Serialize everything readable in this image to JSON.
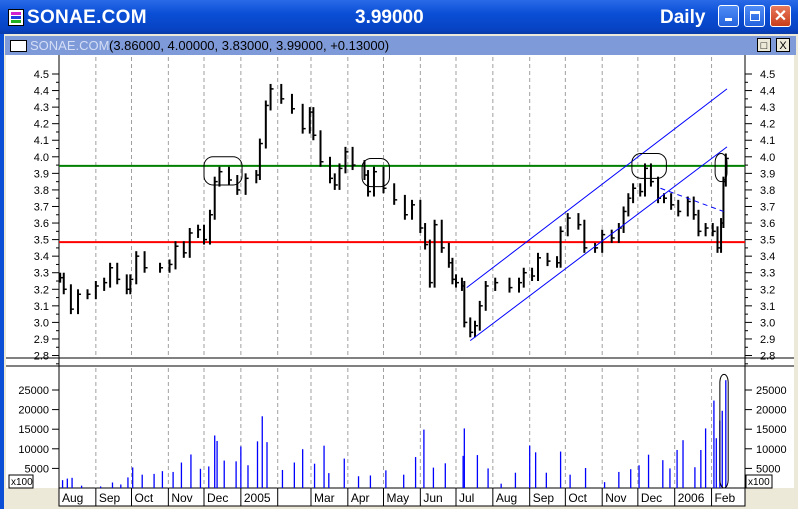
{
  "window": {
    "symbol": "SONAE.COM",
    "last_price": "3.99000",
    "periodicity": "Daily",
    "minimize_icon": "minimize-icon",
    "maximize_icon": "maximize-icon",
    "close_icon": "close-icon"
  },
  "chart_window": {
    "title": "SONAE.COM",
    "ohlc_text": "(3.86000, 4.00000, 3.83000, 3.99000, +0.13000)",
    "restore_label": "□",
    "close_label": "X"
  },
  "chart_data": [
    {
      "type": "bar",
      "pane": "price",
      "ylim": [
        2.8,
        4.55
      ],
      "yticks": [
        "4.5",
        "4.4",
        "4.3",
        "4.2",
        "4.1",
        "4.0",
        "3.9",
        "3.8",
        "3.7",
        "3.6",
        "3.5",
        "3.4",
        "3.3",
        "3.2",
        "3.1",
        "3.0",
        "2.9",
        "2.8"
      ],
      "xlim": [
        "2004-08-01",
        "2006-02-14"
      ],
      "grid": "vertical dashed at month starts",
      "colors": {
        "bars": "#000000",
        "support": "#ff0000",
        "resistance": "#008000",
        "channel": "#0000ff"
      },
      "series": [
        {
          "values": [
            [
              "2004-08-02",
              3.27
            ],
            [
              "2004-08-05",
              3.2
            ],
            [
              "2004-08-11",
              3.08
            ],
            [
              "2004-08-17",
              3.17
            ],
            [
              "2004-08-25",
              3.17
            ],
            [
              "2004-09-01",
              3.22
            ],
            [
              "2004-09-08",
              3.24
            ],
            [
              "2004-09-13",
              3.33
            ],
            [
              "2004-09-19",
              3.26
            ],
            [
              "2004-09-27",
              3.2
            ],
            [
              "2004-09-30",
              3.26
            ],
            [
              "2004-10-05",
              3.4
            ],
            [
              "2004-10-12",
              3.33
            ],
            [
              "2004-10-25",
              3.33
            ],
            [
              "2004-11-02",
              3.35
            ],
            [
              "2004-11-07",
              3.46
            ],
            [
              "2004-11-14",
              3.42
            ],
            [
              "2004-11-19",
              3.54
            ],
            [
              "2004-11-26",
              3.56
            ],
            [
              "2004-12-01",
              3.5
            ],
            [
              "2004-12-06",
              3.65
            ],
            [
              "2004-12-10",
              3.85
            ],
            [
              "2004-12-14",
              3.91
            ],
            [
              "2004-12-22",
              3.86
            ],
            [
              "2004-12-29",
              3.8
            ],
            [
              "2005-01-05",
              3.87
            ],
            [
              "2005-01-14",
              3.89
            ],
            [
              "2005-01-17",
              4.08
            ],
            [
              "2005-01-22",
              4.31
            ],
            [
              "2005-01-26",
              4.41
            ],
            [
              "2005-02-04",
              4.35
            ],
            [
              "2005-02-13",
              4.29
            ],
            [
              "2005-02-22",
              4.17
            ],
            [
              "2005-02-28",
              4.27
            ],
            [
              "2005-03-03",
              4.13
            ],
            [
              "2005-03-09",
              3.97
            ],
            [
              "2005-03-17",
              3.87
            ],
            [
              "2005-03-21",
              3.83
            ],
            [
              "2005-03-25",
              3.93
            ],
            [
              "2005-03-30",
              4.03
            ],
            [
              "2005-04-05",
              3.95
            ],
            [
              "2005-04-15",
              3.89
            ],
            [
              "2005-04-18",
              3.79
            ],
            [
              "2005-04-23",
              3.91
            ],
            [
              "2005-05-01",
              3.81
            ],
            [
              "2005-05-10",
              3.74
            ],
            [
              "2005-05-19",
              3.65
            ],
            [
              "2005-05-25",
              3.71
            ],
            [
              "2005-06-01",
              3.57
            ],
            [
              "2005-06-05",
              3.47
            ],
            [
              "2005-06-09",
              3.24
            ],
            [
              "2005-06-13",
              3.59
            ],
            [
              "2005-06-19",
              3.45
            ],
            [
              "2005-06-25",
              3.36
            ],
            [
              "2005-06-28",
              3.26
            ],
            [
              "2005-07-01",
              3.24
            ],
            [
              "2005-07-06",
              3.22
            ],
            [
              "2005-07-08",
              3.0
            ],
            [
              "2005-07-13",
              2.94
            ],
            [
              "2005-07-17",
              2.98
            ],
            [
              "2005-07-21",
              3.1
            ],
            [
              "2005-07-26",
              3.22
            ],
            [
              "2005-08-03",
              3.24
            ],
            [
              "2005-08-15",
              3.21
            ],
            [
              "2005-08-23",
              3.24
            ],
            [
              "2005-08-27",
              3.3
            ],
            [
              "2005-09-03",
              3.28
            ],
            [
              "2005-09-08",
              3.39
            ],
            [
              "2005-09-16",
              3.37
            ],
            [
              "2005-09-24",
              3.36
            ],
            [
              "2005-09-27",
              3.55
            ],
            [
              "2005-10-03",
              3.63
            ],
            [
              "2005-10-12",
              3.59
            ],
            [
              "2005-10-17",
              3.45
            ],
            [
              "2005-10-26",
              3.45
            ],
            [
              "2005-11-01",
              3.53
            ],
            [
              "2005-11-09",
              3.51
            ],
            [
              "2005-11-15",
              3.57
            ],
            [
              "2005-11-19",
              3.67
            ],
            [
              "2005-11-23",
              3.75
            ],
            [
              "2005-11-27",
              3.81
            ],
            [
              "2005-12-03",
              3.79
            ],
            [
              "2005-12-07",
              3.93
            ],
            [
              "2005-12-12",
              3.85
            ],
            [
              "2005-12-18",
              3.75
            ],
            [
              "2005-12-23",
              3.75
            ],
            [
              "2005-12-29",
              3.71
            ],
            [
              "2006-01-04",
              3.67
            ],
            [
              "2006-01-12",
              3.73
            ],
            [
              "2006-01-17",
              3.65
            ],
            [
              "2006-01-21",
              3.55
            ],
            [
              "2006-01-27",
              3.57
            ],
            [
              "2006-02-02",
              3.55
            ],
            [
              "2006-02-06",
              3.45
            ],
            [
              "2006-02-09",
              3.6
            ],
            [
              "2006-02-11",
              3.85
            ],
            [
              "2006-02-13",
              3.99
            ]
          ]
        }
      ],
      "annotations": {
        "resistance": 3.945,
        "support": 3.485,
        "channel_lower": [
          [
            "2005-07-13",
            2.89
          ],
          [
            "2006-02-14",
            4.06
          ]
        ],
        "channel_upper": [
          [
            "2005-07-10",
            3.21
          ],
          [
            "2006-02-14",
            4.41
          ]
        ],
        "dashed_trendline": [
          [
            "2005-12-20",
            3.81
          ],
          [
            "2006-02-11",
            3.67
          ]
        ],
        "circled_tops": [
          [
            [
              "2004-12-01",
              4.0
            ],
            [
              "2005-01-02",
              3.83
            ]
          ],
          [
            [
              "2005-04-13",
              3.99
            ],
            [
              "2005-05-06",
              3.82
            ]
          ],
          [
            [
              "2005-11-26",
              4.02
            ],
            [
              "2005-12-25",
              3.87
            ]
          ],
          [
            [
              "2006-02-04",
              4.02
            ],
            [
              "2006-02-14",
              3.85
            ]
          ]
        ]
      }
    },
    {
      "type": "bar",
      "pane": "volume",
      "unit_label": "x100",
      "ylim": [
        0,
        31000
      ],
      "yticks": [
        "25000",
        "20000",
        "15000",
        "10000",
        "5000"
      ],
      "color": "#0000ff",
      "values": [
        [
          "2004-08-04",
          2000
        ],
        [
          "2004-08-08",
          2400
        ],
        [
          "2004-08-12",
          2600
        ],
        [
          "2004-08-20",
          600
        ],
        [
          "2004-09-05",
          400
        ],
        [
          "2004-09-15",
          1400
        ],
        [
          "2004-09-22",
          900
        ],
        [
          "2004-09-28",
          2700
        ],
        [
          "2004-10-02",
          5250
        ],
        [
          "2004-10-10",
          3400
        ],
        [
          "2004-10-20",
          3600
        ],
        [
          "2004-10-27",
          4300
        ],
        [
          "2004-11-05",
          4100
        ],
        [
          "2004-11-12",
          6500
        ],
        [
          "2004-11-20",
          8550
        ],
        [
          "2004-11-28",
          4900
        ],
        [
          "2004-12-05",
          5500
        ],
        [
          "2004-12-10",
          13400
        ],
        [
          "2004-12-12",
          12000
        ],
        [
          "2004-12-18",
          7000
        ],
        [
          "2004-12-28",
          6800
        ],
        [
          "2005-01-01",
          10600
        ],
        [
          "2005-01-07",
          5800
        ],
        [
          "2005-01-15",
          11900
        ],
        [
          "2005-01-19",
          18300
        ],
        [
          "2005-01-23",
          11700
        ],
        [
          "2005-02-05",
          4600
        ],
        [
          "2005-02-15",
          6500
        ],
        [
          "2005-02-22",
          9900
        ],
        [
          "2005-03-04",
          6200
        ],
        [
          "2005-03-12",
          10800
        ],
        [
          "2005-03-16",
          3800
        ],
        [
          "2005-03-29",
          7500
        ],
        [
          "2005-04-10",
          3000
        ],
        [
          "2005-04-20",
          3200
        ],
        [
          "2005-05-03",
          4500
        ],
        [
          "2005-05-18",
          3400
        ],
        [
          "2005-05-28",
          7900
        ],
        [
          "2005-06-04",
          14900
        ],
        [
          "2005-06-12",
          5200
        ],
        [
          "2005-06-22",
          6300
        ],
        [
          "2005-07-07",
          8200
        ],
        [
          "2005-07-08",
          15200
        ],
        [
          "2005-07-19",
          8400
        ],
        [
          "2005-07-28",
          5000
        ],
        [
          "2005-08-08",
          1100
        ],
        [
          "2005-08-20",
          3900
        ],
        [
          "2005-09-01",
          10800
        ],
        [
          "2005-09-06",
          9100
        ],
        [
          "2005-09-15",
          3900
        ],
        [
          "2005-09-27",
          9300
        ],
        [
          "2005-10-05",
          3400
        ],
        [
          "2005-10-18",
          5100
        ],
        [
          "2005-11-03",
          1500
        ],
        [
          "2005-11-15",
          4100
        ],
        [
          "2005-11-25",
          4800
        ],
        [
          "2005-12-02",
          5800
        ],
        [
          "2005-12-10",
          8500
        ],
        [
          "2005-12-22",
          7100
        ],
        [
          "2005-12-28",
          5000
        ],
        [
          "2006-01-03",
          9700
        ],
        [
          "2006-01-08",
          12200
        ],
        [
          "2006-01-18",
          5300
        ],
        [
          "2006-01-23",
          9700
        ],
        [
          "2006-01-27",
          15200
        ],
        [
          "2006-02-03",
          22300
        ],
        [
          "2006-02-05",
          12700
        ],
        [
          "2006-02-08",
          17200
        ],
        [
          "2006-02-10",
          19700
        ],
        [
          "2006-02-13",
          27500
        ]
      ],
      "circled": [
        [
          "2006-02-08",
          29000
        ],
        [
          "2006-02-15",
          0
        ]
      ]
    }
  ],
  "date_axis": {
    "labels": [
      {
        "date": "2004-08-01",
        "label": "Aug"
      },
      {
        "date": "2004-09-01",
        "label": "Sep"
      },
      {
        "date": "2004-10-01",
        "label": "Oct"
      },
      {
        "date": "2004-11-01",
        "label": "Nov"
      },
      {
        "date": "2004-12-01",
        "label": "Dec"
      },
      {
        "date": "2005-01-01",
        "label": "2005"
      },
      {
        "date": "2005-02-01",
        "label": ""
      },
      {
        "date": "2005-03-01",
        "label": "Mar"
      },
      {
        "date": "2005-04-01",
        "label": "Apr"
      },
      {
        "date": "2005-05-01",
        "label": "May"
      },
      {
        "date": "2005-06-01",
        "label": "Jun"
      },
      {
        "date": "2005-07-01",
        "label": "Jul"
      },
      {
        "date": "2005-08-01",
        "label": "Aug"
      },
      {
        "date": "2005-09-01",
        "label": "Sep"
      },
      {
        "date": "2005-10-01",
        "label": "Oct"
      },
      {
        "date": "2005-11-01",
        "label": "Nov"
      },
      {
        "date": "2005-12-01",
        "label": "Dec"
      },
      {
        "date": "2006-01-01",
        "label": "2006"
      },
      {
        "date": "2006-02-01",
        "label": "Feb"
      }
    ]
  }
}
